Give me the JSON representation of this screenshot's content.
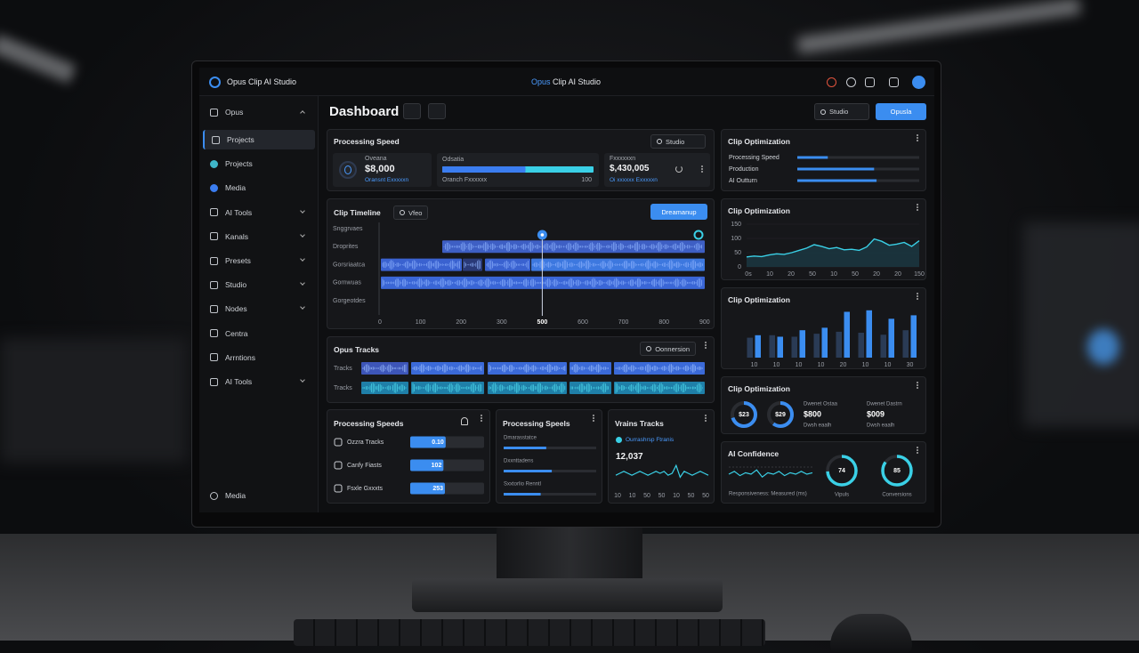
{
  "topbar": {
    "brand": "Opus Clip AI Studio",
    "center_accent": "Opus",
    "center_rest": "Clip AI Studio"
  },
  "sidebar": {
    "items": [
      "Opus",
      "Projects",
      "Projects",
      "Media",
      "AI Tools",
      "Kanals",
      "Presets",
      "Studio",
      "Nodes",
      "Centra",
      "Arrntions",
      "AI Tools"
    ],
    "footer": "Media"
  },
  "header": {
    "title": "Dashboard",
    "search": "Studio",
    "button": "Opusla"
  },
  "processing_speed": {
    "title": "Processing Speed",
    "filter": "Studio",
    "card1": {
      "label": "Oveana",
      "value": "$8,000",
      "caption": "Oransnt Exxxxxn"
    },
    "card2": {
      "label": "Odsatia",
      "caption": "Oranch Fxxxxxx",
      "max": "100",
      "progress": 0.55
    },
    "card3": {
      "label": "Fxxxxxxn",
      "value": "$,430,005",
      "caption": "Oi xxxxxx Exxxxxn"
    }
  },
  "clip_timeline": {
    "title": "Clip Timeline",
    "chip": "Vfeo",
    "button": "Dreamanup",
    "tracks": [
      "Snggrvaes",
      "Droprites",
      "Gorsriaatca",
      "Gornwuas",
      "Gorgeotdes"
    ],
    "xticks": [
      "0",
      "100",
      "200",
      "300",
      "500",
      "600",
      "700",
      "800",
      "900"
    ]
  },
  "opus_tracks": {
    "title": "Opus Tracks",
    "button": "Oonnersion",
    "tracks": [
      "Tracks",
      "Tracks"
    ]
  },
  "speeds_a": {
    "title": "Processing Speeds",
    "rows": [
      {
        "label": "Ozzra Tracks",
        "value": "0.10",
        "fill": 0.48
      },
      {
        "label": "Canfy Fiasts",
        "value": "102",
        "fill": 0.45
      },
      {
        "label": "Fsxle Gxxxts",
        "value": "253",
        "fill": 0.47
      }
    ]
  },
  "speeds_b": {
    "title": "Processing Speels",
    "rows": [
      {
        "label": "Dmarasstatce",
        "progress": 0.46
      },
      {
        "label": "Dxxnttadens",
        "progress": 0.52
      },
      {
        "label": "Sxxtorlio Renntl",
        "progress": 0.4
      }
    ]
  },
  "video_tracks": {
    "title": "Vrains Tracks",
    "legend": "Ourrashrsp Ftranis",
    "value": "12,037",
    "ylim": [
      0,
      10
    ],
    "values": [
      4,
      5,
      6,
      5,
      4,
      5,
      6,
      5,
      4,
      5,
      6,
      5,
      6,
      4,
      5,
      9,
      3,
      6,
      5,
      4,
      5,
      6,
      5,
      4
    ],
    "xticks": [
      "10",
      "10",
      "50",
      "50",
      "10",
      "50",
      "50"
    ]
  },
  "opt_bars": {
    "title": "Clip Optimization",
    "rows": [
      {
        "label": "Processing Speed",
        "progress": 0.25
      },
      {
        "label": "Production",
        "progress": 0.63
      },
      {
        "label": "AI Outturn",
        "progress": 0.65
      }
    ]
  },
  "opt_line": {
    "title": "Clip Optimization",
    "ylim": [
      0,
      150
    ],
    "yticks": [
      0,
      50,
      100,
      150
    ],
    "values": [
      35,
      38,
      36,
      42,
      46,
      44,
      50,
      58,
      66,
      78,
      72,
      64,
      68,
      60,
      62,
      58,
      70,
      98,
      90,
      76,
      80,
      86,
      72,
      92
    ],
    "xticks": [
      "0s",
      "10",
      "20",
      "50",
      "10",
      "50",
      "20",
      "20",
      "150"
    ]
  },
  "opt_bars2": {
    "title": "Clip Optimization",
    "ylim": [
      0,
      100
    ],
    "categories": [
      "10",
      "10",
      "10",
      "10",
      "20",
      "10",
      "10",
      "30"
    ],
    "series": [
      {
        "color": "#2a3b55",
        "values": [
          40,
          45,
          42,
          48,
          52,
          50,
          46,
          55
        ]
      },
      {
        "color": "#3b8df0",
        "values": [
          45,
          42,
          55,
          60,
          92,
          95,
          78,
          85
        ]
      }
    ]
  },
  "opt_donuts": {
    "title": "Clip Optimization",
    "donuts": [
      {
        "label": "$23",
        "fill": 0.7
      },
      {
        "label": "$29",
        "fill": 0.6
      }
    ],
    "stats": [
      {
        "label": "Dwenet Ostaa",
        "value": "$800",
        "caption": "Dwsh eaalh"
      },
      {
        "label": "Dwenet Dastrn",
        "value": "$009",
        "caption": "Dwsh eaalh"
      }
    ]
  },
  "ai_confidence": {
    "title": "AI Confidence",
    "ylim": [
      0,
      10
    ],
    "wave": [
      5,
      7,
      4,
      6,
      5,
      8,
      3,
      6,
      5,
      7,
      4,
      6,
      5,
      7,
      5,
      6
    ],
    "caption": "Responsiveness: Measured (ms)",
    "gauges": [
      {
        "value": 74,
        "label": "Vipuls"
      },
      {
        "value": 85,
        "label": "Conversions"
      }
    ]
  }
}
